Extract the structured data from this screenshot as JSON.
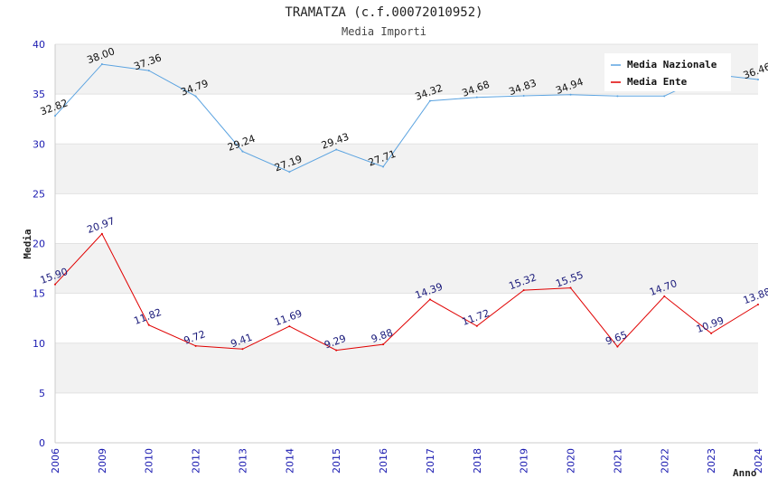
{
  "chart_data": {
    "type": "line",
    "title": "TRAMATZA (c.f.00072010952)",
    "subtitle": "Media Importi",
    "xlabel": "Anno",
    "ylabel": "Media",
    "ylim": [
      0,
      40
    ],
    "yticks": [
      0,
      5,
      10,
      15,
      20,
      25,
      30,
      35,
      40
    ],
    "categories": [
      "2006",
      "2009",
      "2010",
      "2012",
      "2013",
      "2014",
      "2015",
      "2016",
      "2017",
      "2018",
      "2019",
      "2020",
      "2021",
      "2022",
      "2023",
      "2024"
    ],
    "legend_position": "top-right",
    "series": [
      {
        "name": "Media Nazionale",
        "color": "#5ba3e0",
        "values": [
          32.82,
          38.0,
          37.36,
          34.79,
          29.24,
          27.19,
          29.43,
          27.71,
          34.32,
          34.68,
          34.83,
          34.94,
          34.8,
          34.8,
          37.0,
          36.46
        ],
        "labels": [
          "32.82",
          "38.00",
          "37.36",
          "34.79",
          "29.24",
          "27.19",
          "29.43",
          "27.71",
          "34.32",
          "34.68",
          "34.83",
          "34.94",
          "",
          "",
          "",
          "36.46"
        ]
      },
      {
        "name": "Media Ente",
        "color": "#e00000",
        "values": [
          15.9,
          20.97,
          11.82,
          9.72,
          9.41,
          11.69,
          9.29,
          9.88,
          14.39,
          11.72,
          15.32,
          15.55,
          9.65,
          14.7,
          10.99,
          13.88
        ],
        "labels": [
          "15.90",
          "20.97",
          "11.82",
          "9.72",
          "9.41",
          "11.69",
          "9.29",
          "9.88",
          "14.39",
          "11.72",
          "15.32",
          "15.55",
          "9.65",
          "14.70",
          "10.99",
          "13.88"
        ]
      }
    ]
  }
}
